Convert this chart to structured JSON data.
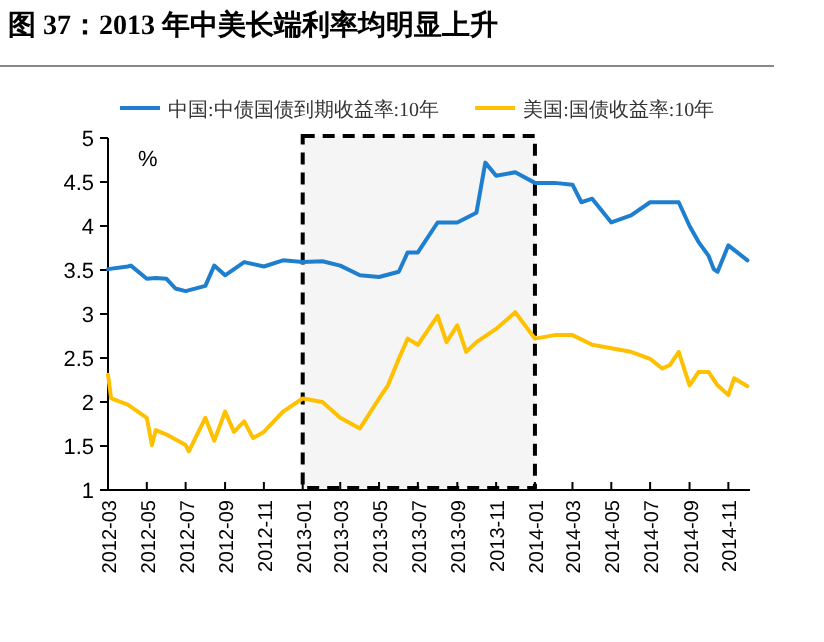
{
  "chart_data": {
    "type": "line",
    "title": "图 37：2013 年中美长端利率均明显上升",
    "series": [
      {
        "name": "中国:中债国债到期收益率:10年",
        "color": "#1f7fcf",
        "x": [
          "2012-03-01",
          "2012-04-01",
          "2012-04-06",
          "2012-05-01",
          "2012-05-15",
          "2012-06-01",
          "2012-06-15",
          "2012-07-01",
          "2012-08-01",
          "2012-08-15",
          "2012-09-01",
          "2012-10-01",
          "2012-11-01",
          "2012-12-01",
          "2013-01-01",
          "2013-02-01",
          "2013-03-01",
          "2013-04-01",
          "2013-05-01",
          "2013-06-01",
          "2013-06-15",
          "2013-07-01",
          "2013-08-01",
          "2013-09-01",
          "2013-10-01",
          "2013-10-15",
          "2013-11-01",
          "2013-12-01",
          "2014-01-01",
          "2014-02-01",
          "2014-03-01",
          "2014-03-15",
          "2014-04-01",
          "2014-05-01",
          "2014-06-01",
          "2014-07-01",
          "2014-08-01",
          "2014-08-15",
          "2014-09-01",
          "2014-09-15",
          "2014-10-01",
          "2014-10-09",
          "2014-10-15",
          "2014-11-01",
          "2014-11-15",
          "2014-12-01"
        ],
        "values": [
          3.51,
          3.54,
          3.55,
          3.4,
          3.41,
          3.4,
          3.29,
          3.26,
          3.32,
          3.55,
          3.44,
          3.59,
          3.54,
          3.61,
          3.59,
          3.6,
          3.55,
          3.44,
          3.42,
          3.48,
          3.7,
          3.7,
          4.04,
          4.04,
          4.15,
          4.72,
          4.57,
          4.61,
          4.49,
          4.49,
          4.47,
          4.27,
          4.31,
          4.04,
          4.12,
          4.27,
          4.27,
          4.27,
          4.0,
          3.82,
          3.66,
          3.51,
          3.48,
          3.78,
          3.7,
          3.61
        ]
      },
      {
        "name": "美国:国债收益率:10年",
        "color": "#ffc000",
        "x": [
          "2012-03-01",
          "2012-03-06",
          "2012-04-01",
          "2012-05-01",
          "2012-05-09",
          "2012-05-15",
          "2012-06-01",
          "2012-07-01",
          "2012-07-06",
          "2012-08-01",
          "2012-08-15",
          "2012-09-01",
          "2012-09-15",
          "2012-10-01",
          "2012-10-15",
          "2012-11-01",
          "2012-12-01",
          "2013-01-01",
          "2013-02-01",
          "2013-03-01",
          "2013-04-01",
          "2013-05-01",
          "2013-05-15",
          "2013-06-01",
          "2013-06-15",
          "2013-07-01",
          "2013-08-01",
          "2013-08-15",
          "2013-09-01",
          "2013-09-15",
          "2013-10-01",
          "2013-11-01",
          "2013-12-01",
          "2014-01-01",
          "2014-02-01",
          "2014-03-01",
          "2014-04-01",
          "2014-05-01",
          "2014-06-01",
          "2014-07-01",
          "2014-07-20",
          "2014-08-01",
          "2014-08-15",
          "2014-09-01",
          "2014-09-15",
          "2014-10-01",
          "2014-10-15",
          "2014-11-01",
          "2014-11-10",
          "2014-12-01"
        ],
        "values": [
          2.31,
          2.04,
          1.97,
          1.82,
          1.51,
          1.68,
          1.63,
          1.51,
          1.44,
          1.82,
          1.56,
          1.89,
          1.66,
          1.78,
          1.59,
          1.66,
          1.89,
          2.04,
          2.0,
          1.82,
          1.7,
          2.04,
          2.19,
          2.49,
          2.72,
          2.65,
          2.98,
          2.68,
          2.87,
          2.57,
          2.68,
          2.83,
          3.02,
          2.72,
          2.76,
          2.76,
          2.65,
          2.61,
          2.57,
          2.49,
          2.38,
          2.42,
          2.57,
          2.19,
          2.34,
          2.34,
          2.19,
          2.08,
          2.27,
          2.18
        ]
      }
    ],
    "xlim": [
      "2012-03-01",
      "2014-12-05"
    ],
    "xticks": [
      {
        "value": "2012-03-01",
        "label": "2012-03"
      },
      {
        "value": "2012-05-01",
        "label": "2012-05"
      },
      {
        "value": "2012-07-01",
        "label": "2012-07"
      },
      {
        "value": "2012-09-01",
        "label": "2012-09"
      },
      {
        "value": "2012-11-01",
        "label": "2012-11"
      },
      {
        "value": "2013-01-01",
        "label": "2013-01"
      },
      {
        "value": "2013-03-01",
        "label": "2013-03"
      },
      {
        "value": "2013-05-01",
        "label": "2013-05"
      },
      {
        "value": "2013-07-01",
        "label": "2013-07"
      },
      {
        "value": "2013-09-01",
        "label": "2013-09"
      },
      {
        "value": "2013-11-01",
        "label": "2013-11"
      },
      {
        "value": "2014-01-01",
        "label": "2014-01"
      },
      {
        "value": "2014-03-01",
        "label": "2014-03"
      },
      {
        "value": "2014-05-01",
        "label": "2014-05"
      },
      {
        "value": "2014-07-01",
        "label": "2014-07"
      },
      {
        "value": "2014-09-01",
        "label": "2014-09"
      },
      {
        "value": "2014-11-01",
        "label": "2014-11"
      }
    ],
    "ylim": [
      1,
      5
    ],
    "yticks": [
      1,
      1.5,
      2,
      2.5,
      3,
      3.5,
      4,
      4.5,
      5
    ],
    "bands": [
      {
        "axis": "x",
        "from": "2013-01-01",
        "to": "2014-01-01",
        "color": "#000000"
      }
    ],
    "annotations": [
      "%"
    ],
    "legend": "top",
    "grid": false,
    "marker": "none",
    "line_style": "solid"
  }
}
